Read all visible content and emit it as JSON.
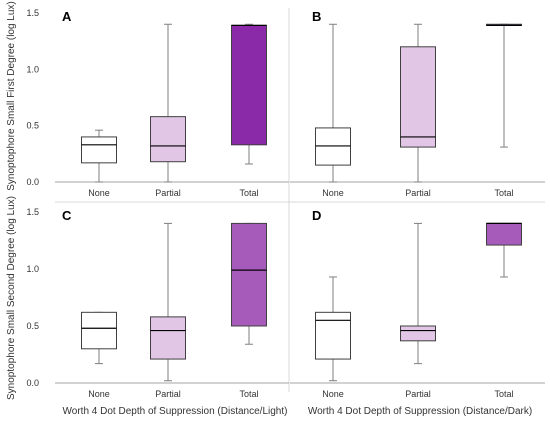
{
  "figure": {
    "ylabel_top": "Synoptophore Small First Degree (log Lux)",
    "ylabel_bottom": "Synoptophore Small Second Degree (log Lux)",
    "xlabel_left": "Worth 4 Dot Depth of Suppression (Distance/Light)",
    "xlabel_right": "Worth 4 Dot Depth of Suppression (Distance/Dark)"
  },
  "colors": {
    "None": "#ffffff",
    "Partial": "#e2c6e6",
    "Total_A": "#8a2aa8",
    "Total_B": "#8a2aa8",
    "Total_C": "#a65bbb",
    "Total_D": "#a65bbb"
  },
  "chart_data": [
    {
      "panel": "A",
      "type": "boxplot",
      "categories": [
        "None",
        "Partial",
        "Total"
      ],
      "ylim": [
        0,
        1.5
      ],
      "yticks": [
        "0.0",
        "0.5",
        "1.0",
        "1.5"
      ],
      "boxes": [
        {
          "min": 0.0,
          "q1": 0.17,
          "median": 0.33,
          "q3": 0.4,
          "max": 0.46
        },
        {
          "min": 0.0,
          "q1": 0.18,
          "median": 0.32,
          "q3": 0.58,
          "max": 1.4
        },
        {
          "min": 0.16,
          "q1": 0.33,
          "median": 1.39,
          "q3": 1.39,
          "max": 1.4
        }
      ]
    },
    {
      "panel": "B",
      "type": "boxplot",
      "categories": [
        "None",
        "Partial",
        "Total"
      ],
      "ylim": [
        0,
        1.5
      ],
      "yticks": [],
      "boxes": [
        {
          "min": 0.0,
          "q1": 0.15,
          "median": 0.32,
          "q3": 0.48,
          "max": 1.4
        },
        {
          "min": 0.0,
          "q1": 0.31,
          "median": 0.4,
          "q3": 1.2,
          "max": 1.4
        },
        {
          "min": 0.31,
          "q1": 1.39,
          "median": 1.39,
          "q3": 1.4,
          "max": 1.4
        }
      ]
    },
    {
      "panel": "C",
      "type": "boxplot",
      "categories": [
        "None",
        "Partial",
        "Total"
      ],
      "ylim": [
        0,
        1.5
      ],
      "yticks": [
        "0.0",
        "0.5",
        "1.0",
        "1.5"
      ],
      "boxes": [
        {
          "min": 0.17,
          "q1": 0.3,
          "median": 0.48,
          "q3": 0.62,
          "max": 0.62
        },
        {
          "min": 0.02,
          "q1": 0.21,
          "median": 0.46,
          "q3": 0.58,
          "max": 1.4
        },
        {
          "min": 0.34,
          "q1": 0.5,
          "median": 0.99,
          "q3": 1.4,
          "max": 1.4
        }
      ]
    },
    {
      "panel": "D",
      "type": "boxplot",
      "categories": [
        "None",
        "Partial",
        "Total"
      ],
      "ylim": [
        0,
        1.5
      ],
      "yticks": [],
      "boxes": [
        {
          "min": 0.02,
          "q1": 0.21,
          "median": 0.55,
          "q3": 0.62,
          "max": 0.93
        },
        {
          "min": 0.17,
          "q1": 0.37,
          "median": 0.46,
          "q3": 0.5,
          "max": 1.4
        },
        {
          "min": 0.93,
          "q1": 1.21,
          "median": 1.4,
          "q3": 1.4,
          "max": 1.4
        }
      ]
    }
  ]
}
